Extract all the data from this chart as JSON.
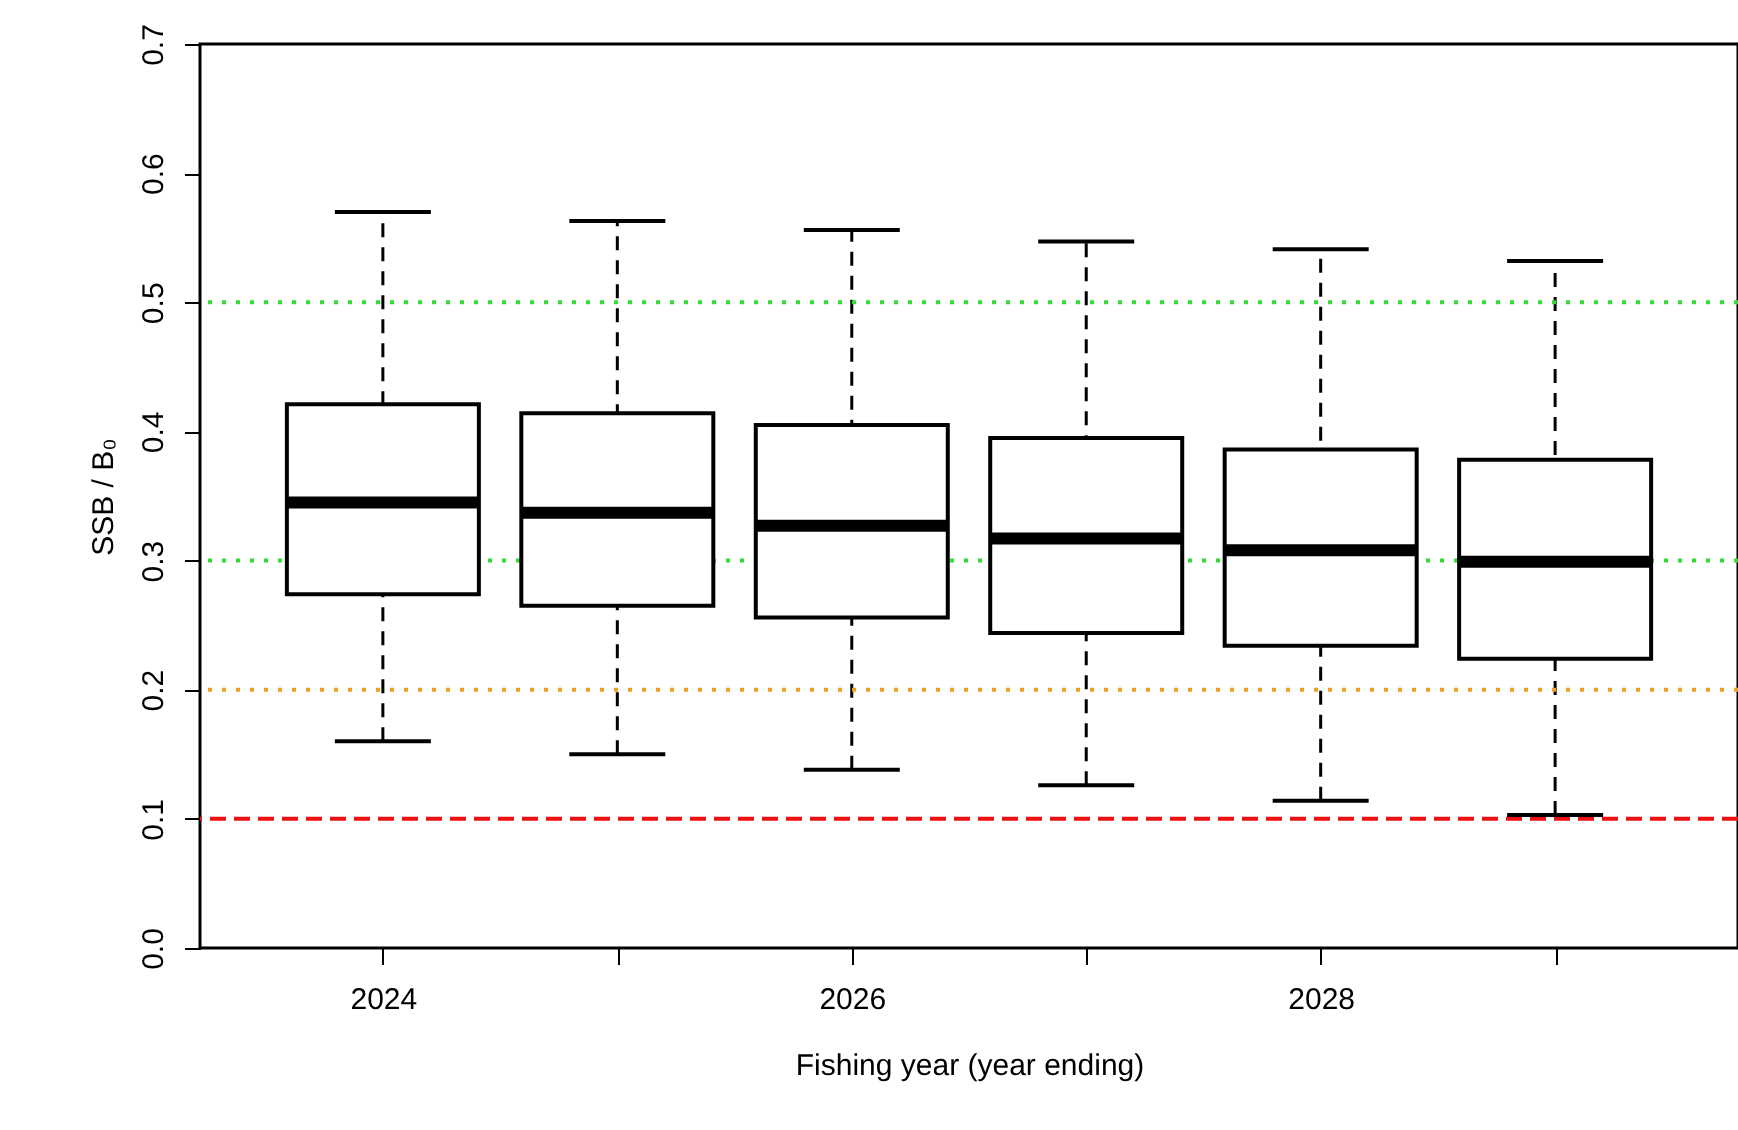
{
  "chart_data": {
    "type": "box",
    "xlabel": "Fishing year (year ending)",
    "ylabel": "SSB / B₀",
    "categories": [
      "2024",
      null,
      "2026",
      null,
      "2028",
      null
    ],
    "boxes": [
      {
        "low": 0.16,
        "q1": 0.274,
        "median": 0.345,
        "q3": 0.421,
        "high": 0.57
      },
      {
        "low": 0.15,
        "q1": 0.265,
        "median": 0.337,
        "q3": 0.414,
        "high": 0.563
      },
      {
        "low": 0.138,
        "q1": 0.256,
        "median": 0.327,
        "q3": 0.405,
        "high": 0.556
      },
      {
        "low": 0.126,
        "q1": 0.244,
        "median": 0.317,
        "q3": 0.395,
        "high": 0.547
      },
      {
        "low": 0.114,
        "q1": 0.234,
        "median": 0.308,
        "q3": 0.386,
        "high": 0.541
      },
      {
        "low": 0.103,
        "q1": 0.224,
        "median": 0.299,
        "q3": 0.378,
        "high": 0.532
      }
    ],
    "ylim": [
      0,
      0.7
    ],
    "yticks": [
      {
        "value": 0,
        "label": "0.0"
      },
      0.1,
      0.2,
      0.3,
      0.4,
      0.5,
      0.6,
      0.7
    ],
    "ref_lines": [
      {
        "axis": "y",
        "value": 0.5,
        "color": "#33dd33",
        "line_style": "dotted"
      },
      {
        "axis": "y",
        "value": 0.3,
        "color": "#33dd33",
        "line_style": "dotted"
      },
      {
        "axis": "y",
        "value": 0.2,
        "color": "#f0a020",
        "line_style": "dotted"
      },
      {
        "axis": "y",
        "value": 0.1,
        "color": "#ee1111",
        "line_style": "dashed"
      }
    ],
    "grid": false
  }
}
